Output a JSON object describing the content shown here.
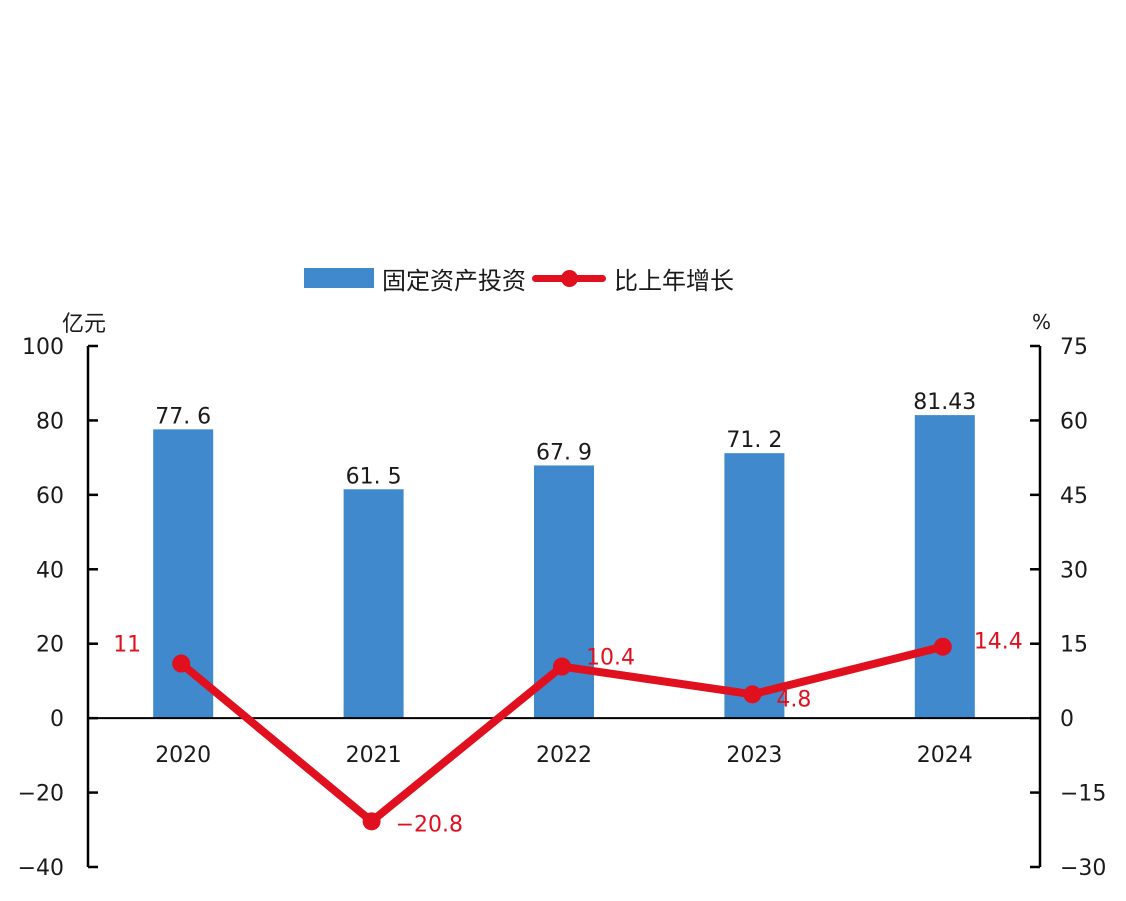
{
  "legend": {
    "bar_label": "固定资产投资",
    "line_label": "比上年增长"
  },
  "axes": {
    "left_unit": "亿元",
    "right_unit": "%"
  },
  "colors": {
    "bar": "#3f89cc",
    "line": "#e0101f",
    "axis": "#000000",
    "text": "#1a1a1a"
  },
  "chart_data": {
    "type": "bar+line",
    "title": "",
    "categories": [
      "2020",
      "2021",
      "2022",
      "2023",
      "2024"
    ],
    "series": [
      {
        "name": "固定资产投资",
        "type": "bar",
        "axis": "left",
        "values": [
          77.6,
          61.5,
          67.9,
          71.2,
          81.43
        ],
        "labels": [
          "77. 6",
          "61. 5",
          "67. 9",
          "71. 2",
          "81.43"
        ]
      },
      {
        "name": "比上年增长",
        "type": "line",
        "axis": "right",
        "values": [
          11,
          -20.8,
          10.4,
          4.8,
          14.4
        ],
        "labels": [
          "11",
          "−20.8",
          "10.4",
          "4.8",
          "14.4"
        ]
      }
    ],
    "ylabel": "亿元",
    "y2label": "%",
    "ylim": [
      -40,
      100
    ],
    "y2lim": [
      -30,
      75
    ],
    "yticks": [
      100,
      80,
      60,
      40,
      20,
      0,
      -20,
      -40
    ],
    "y2ticks": [
      75,
      60,
      45,
      30,
      15,
      0,
      -15,
      -30
    ],
    "ytick_labels": [
      "100",
      "80",
      "60",
      "40",
      "20",
      "0",
      "−20",
      "−40"
    ],
    "y2tick_labels": [
      "75",
      "60",
      "45",
      "30",
      "15",
      "0",
      "−15",
      "−30"
    ],
    "grid": false,
    "legend_position": "top"
  }
}
